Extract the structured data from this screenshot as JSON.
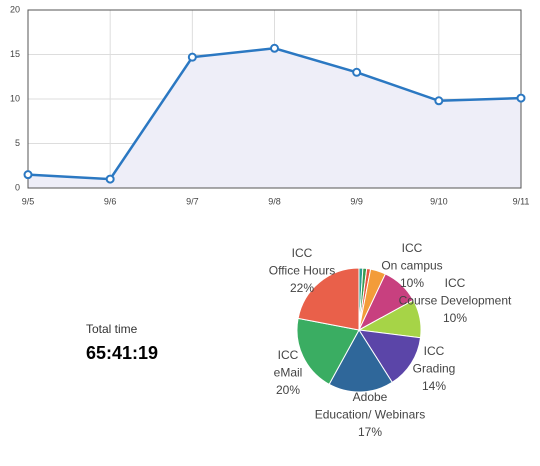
{
  "chart_data": [
    {
      "type": "line",
      "categories": [
        "9/5",
        "9/6",
        "9/7",
        "9/8",
        "9/9",
        "9/10",
        "9/11"
      ],
      "values": [
        1.5,
        1.0,
        14.7,
        15.7,
        13.0,
        9.8,
        10.1
      ],
      "color": "#2b78c2",
      "area_color": "#eeeef8",
      "ylim": [
        0,
        20
      ],
      "yticks": [
        0,
        5,
        10,
        15,
        20
      ],
      "grid": true
    },
    {
      "type": "pie",
      "categories": [
        null,
        null,
        null,
        null,
        [
          "ICC",
          "On campus"
        ],
        [
          "ICC",
          "Course Development"
        ],
        [
          "ICC",
          "Grading"
        ],
        [
          "Adobe",
          "Education/ Webinars"
        ],
        [
          "ICC",
          "eMail"
        ],
        [
          "ICC",
          "Office Hours"
        ]
      ],
      "values": [
        1,
        1,
        1,
        4,
        10,
        10,
        14,
        17,
        20,
        22
      ],
      "value_labels": [
        null,
        null,
        null,
        null,
        "10%",
        "10%",
        "14%",
        "17%",
        "20%",
        "22%"
      ],
      "colors": [
        "#2a9d8f",
        "#3a9a50",
        "#e8553f",
        "#f39c3a",
        "#c8407f",
        "#a6d447",
        "#5b45a8",
        "#2f679a",
        "#3aad62",
        "#e9604a"
      ]
    }
  ],
  "summary": {
    "label": "Total time",
    "value": "65:41:19"
  }
}
